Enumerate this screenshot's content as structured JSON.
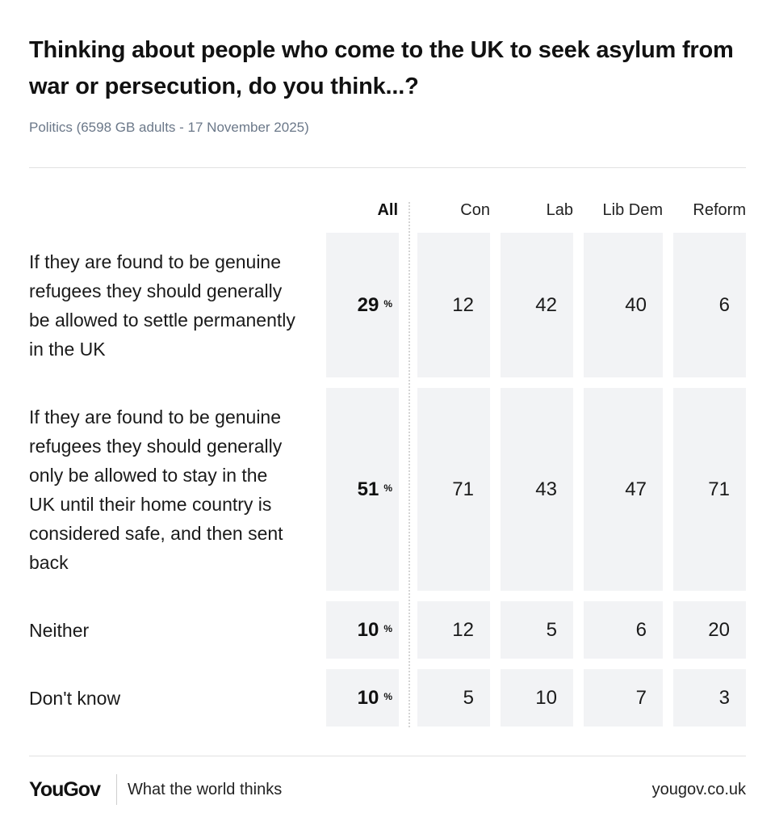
{
  "chart_data": {
    "type": "table",
    "title": "Thinking about people who come to the UK to seek asylum from war or persecution, do you think...?",
    "subtitle": "Politics (6598 GB adults - 17 November 2025)",
    "columns": [
      "All",
      "Con",
      "Lab",
      "Lib Dem",
      "Reform"
    ],
    "percent_sign": "%",
    "rows": [
      {
        "label": "If they are found to be genuine refugees they should generally be allowed to settle permanently in the UK",
        "all": "29",
        "values": [
          "12",
          "42",
          "40",
          "6"
        ]
      },
      {
        "label": "If they are found to be genuine refugees they should generally only be allowed to stay in the UK until their home country is considered safe, and then sent back",
        "all": "51",
        "values": [
          "71",
          "43",
          "47",
          "71"
        ]
      },
      {
        "label": "Neither",
        "all": "10",
        "values": [
          "12",
          "5",
          "6",
          "20"
        ]
      },
      {
        "label": "Don't know",
        "all": "10",
        "values": [
          "5",
          "10",
          "7",
          "3"
        ]
      }
    ]
  },
  "footer": {
    "logo": "YouGov",
    "tagline": "What the world thinks",
    "url": "yougov.co.uk"
  },
  "colors": {
    "cell_background": "#f2f3f5",
    "subtitle": "#6b7889",
    "divider": "#e2e2e2"
  }
}
